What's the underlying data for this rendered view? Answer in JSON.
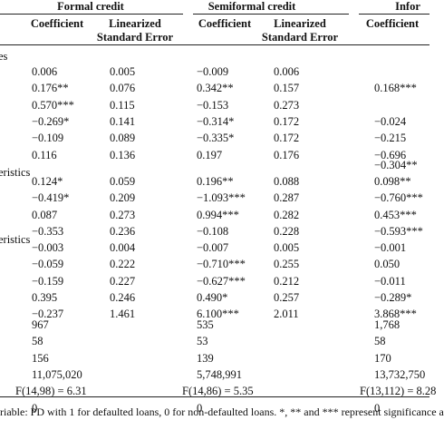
{
  "groups": [
    {
      "label": "Formal credit"
    },
    {
      "label": "Semiformal credit"
    },
    {
      "label": "Infor"
    }
  ],
  "subheaders": {
    "coef": "Coefficient",
    "se_line1": "Linearized",
    "se_line2": "Standard Error"
  },
  "sections": [
    "es",
    "eristics",
    "eristics"
  ],
  "rows": [
    {
      "f": "0.006",
      "fse": "0.005",
      "s": "−0.009",
      "sse": "0.006",
      "i": ""
    },
    {
      "f": "0.176**",
      "fse": "0.076",
      "s": "0.342**",
      "sse": "0.157",
      "i": "0.168***"
    },
    {
      "f": "0.570***",
      "fse": "0.115",
      "s": "−0.153",
      "sse": "0.273",
      "i": ""
    },
    {
      "f": "−0.269*",
      "fse": "0.141",
      "s": "−0.314*",
      "sse": "0.172",
      "i": "−0.024"
    },
    {
      "f": "−0.109",
      "fse": "0.089",
      "s": "−0.335*",
      "sse": "0.172",
      "i": "−0.215"
    },
    {
      "f": "0.116",
      "fse": "0.136",
      "s": "0.197",
      "sse": "0.176",
      "i": "−0.696"
    },
    {
      "f": "",
      "fse": "",
      "s": "",
      "sse": "",
      "i": "−0.304**"
    },
    {
      "f": "0.124*",
      "fse": "0.059",
      "s": "0.196**",
      "sse": "0.088",
      "i": "0.098**"
    },
    {
      "f": "−0.419*",
      "fse": "0.209",
      "s": "−1.093***",
      "sse": "0.287",
      "i": "−0.760***"
    },
    {
      "f": "0.087",
      "fse": "0.273",
      "s": "0.994***",
      "sse": "0.282",
      "i": "0.453***"
    },
    {
      "f": "−0.353",
      "fse": "0.236",
      "s": "−0.108",
      "sse": "0.228",
      "i": "−0.593***"
    },
    {
      "f": "−0.003",
      "fse": "0.004",
      "s": "−0.007",
      "sse": "0.005",
      "i": "−0.001"
    },
    {
      "f": "−0.059",
      "fse": "0.222",
      "s": "−0.710***",
      "sse": "0.255",
      "i": "0.050"
    },
    {
      "f": "−0.159",
      "fse": "0.227",
      "s": "−0.627***",
      "sse": "0.212",
      "i": "−0.011"
    },
    {
      "f": "0.395",
      "fse": "0.246",
      "s": "0.490*",
      "sse": "0.257",
      "i": "−0.289*"
    },
    {
      "f": "−0.237",
      "fse": "1.461",
      "s": "6.100***",
      "sse": "2.011",
      "i": "3.868***"
    }
  ],
  "stats": [
    {
      "f": "967",
      "s": "535",
      "i": "1,768"
    },
    {
      "f": "58",
      "s": "53",
      "i": "58"
    },
    {
      "f": "156",
      "s": "139",
      "i": "170"
    },
    {
      "f": "11,075,020",
      "s": "5,748,991",
      "i": "13,732,750"
    },
    {
      "f": "F(14,98) = 6.31",
      "s": "F(14,86) = 5.35",
      "i": "F(13,112) = 8.28"
    },
    {
      "f": "0",
      "s": "0",
      "i": "0"
    }
  ],
  "footnote": "riable: PD with 1 for defaulted loans, 0 for non-defaulted loans. *, ** and *** represent significance a"
}
